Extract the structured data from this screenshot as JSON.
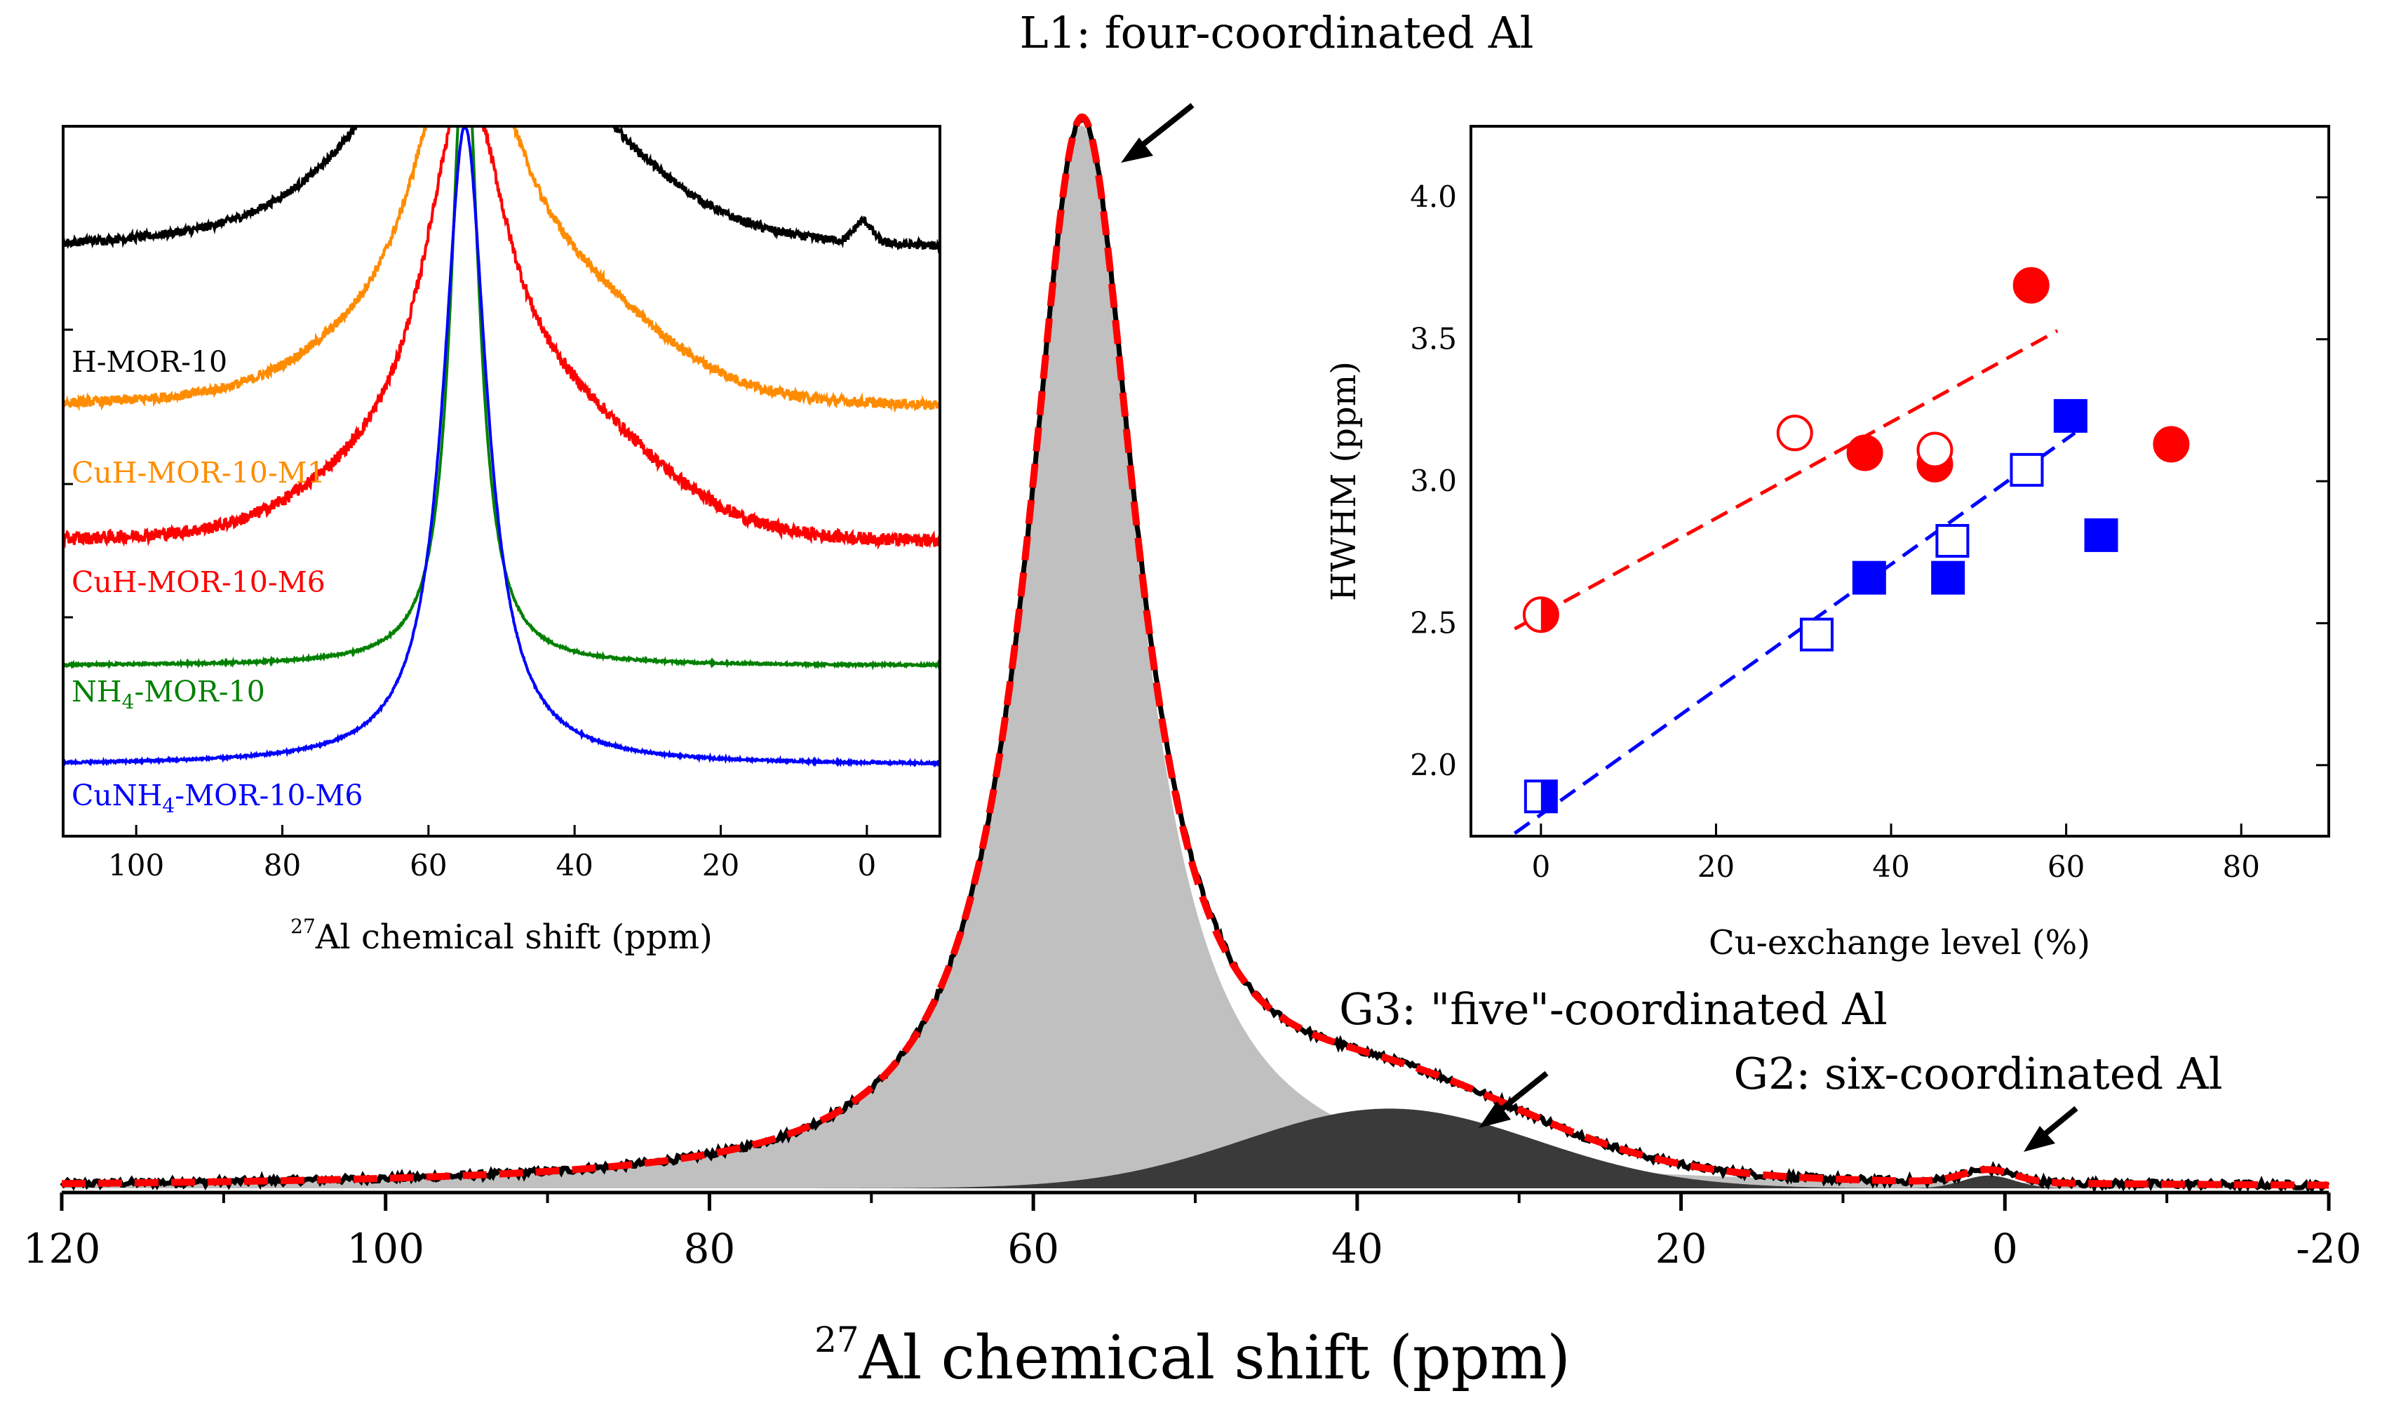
{
  "chart_data": [
    {
      "id": "main",
      "type": "line",
      "title": "",
      "xlabel_sup": "27",
      "xlabel": "Al chemical shift (ppm)",
      "ylabel": "",
      "xlim": [
        120,
        -20
      ],
      "xticks": [
        "120",
        "100",
        "80",
        "60",
        "40",
        "20",
        "0",
        "-20"
      ],
      "tick_values": [
        120,
        100,
        80,
        60,
        40,
        20,
        0,
        -20
      ],
      "components": [
        {
          "name": "L1",
          "label": "L1: four-coordinated Al",
          "shape": "lorentzian",
          "center": 57,
          "hwhm": 4.2,
          "height": 1.0,
          "color": "#c0c0c0"
        },
        {
          "name": "G3",
          "label": "G3: \"five\"-coordinated Al",
          "shape": "gaussian",
          "center": 38,
          "sigma": 9,
          "height": 0.075,
          "color": "#3a3a3a"
        },
        {
          "name": "G2",
          "label": "G2: six-coordinated Al",
          "shape": "gaussian",
          "center": 1,
          "sigma": 1.6,
          "height": 0.012,
          "color": "#3a3a3a"
        }
      ],
      "series": [
        {
          "name": "experimental",
          "color": "#000000",
          "style": "solid"
        },
        {
          "name": "fit",
          "color": "#ff0000",
          "style": "dashed"
        }
      ],
      "annotations": [
        {
          "text": "L1: four-coordinated Al",
          "points_to_ppm": 56
        },
        {
          "text": "G3: \"five\"-coordinated Al",
          "points_to_ppm": 32
        },
        {
          "text": "G2: six-coordinated Al",
          "points_to_ppm": -1
        }
      ]
    },
    {
      "id": "inset-spectra",
      "type": "line",
      "xlabel_sup": "27",
      "xlabel": "Al chemical shift (ppm)",
      "xlim": [
        110,
        -10
      ],
      "xticks": [
        "100",
        "80",
        "60",
        "40",
        "20",
        "0"
      ],
      "tick_values": [
        100,
        80,
        60,
        40,
        20,
        0
      ],
      "series": [
        {
          "name": "H-MOR-10",
          "color": "#000000",
          "baseline": 0.82
        },
        {
          "name": "CuH-MOR-10-M1",
          "color": "#ff8c00",
          "baseline": 0.6
        },
        {
          "name": "CuH-MOR-10-M6",
          "color": "#ff0000",
          "baseline": 0.41
        },
        {
          "name": "NH4-MOR-10",
          "name_main": "NH",
          "name_sub": "4",
          "name_rest": "-MOR-10",
          "color": "#008000",
          "baseline": 0.24
        },
        {
          "name": "CuNH4-MOR-10-M6",
          "name_main": "CuNH",
          "name_sub": "4",
          "name_rest": "-MOR-10-M6",
          "color": "#0000ff",
          "baseline": 0.1
        }
      ]
    },
    {
      "id": "inset-hwhm",
      "type": "scatter",
      "xlabel": "Cu-exchange level (%)",
      "ylabel": "HWHM (ppm)",
      "xlim": [
        -8,
        90
      ],
      "ylim": [
        1.75,
        4.25
      ],
      "xticks": [
        "0",
        "20",
        "40",
        "60",
        "80"
      ],
      "xtick_values": [
        0,
        20,
        40,
        60,
        80
      ],
      "yticks": [
        "2.0",
        "2.5",
        "3.0",
        "3.5",
        "4.0"
      ],
      "ytick_values": [
        2.0,
        2.5,
        3.0,
        3.5,
        4.0
      ],
      "series": [
        {
          "name": "circles-filled",
          "marker": "circle",
          "fill": true,
          "color": "#ff0000",
          "points": [
            [
              37,
              3.1
            ],
            [
              45,
              3.06
            ],
            [
              56,
              3.69
            ],
            [
              72,
              3.13
            ]
          ]
        },
        {
          "name": "circles-open",
          "marker": "circle",
          "fill": false,
          "color": "#ff0000",
          "points": [
            [
              29,
              3.17
            ],
            [
              45,
              3.11
            ]
          ]
        },
        {
          "name": "circle-half",
          "marker": "circle-half",
          "color": "#ff0000",
          "points": [
            [
              0,
              2.53
            ]
          ]
        },
        {
          "name": "squares-filled",
          "marker": "square",
          "fill": true,
          "color": "#0000ff",
          "points": [
            [
              37.5,
              2.66
            ],
            [
              46.5,
              2.66
            ],
            [
              60.5,
              3.23
            ],
            [
              64,
              2.81
            ]
          ]
        },
        {
          "name": "squares-open",
          "marker": "square",
          "fill": false,
          "color": "#0000ff",
          "points": [
            [
              31.5,
              2.46
            ],
            [
              47,
              2.79
            ],
            [
              55.5,
              3.04
            ]
          ]
        },
        {
          "name": "square-half",
          "marker": "square-half",
          "color": "#0000ff",
          "points": [
            [
              0,
              1.89
            ]
          ]
        }
      ],
      "trendlines": [
        {
          "color": "#ff0000",
          "from": [
            -3,
            2.48
          ],
          "to": [
            59,
            3.53
          ]
        },
        {
          "color": "#0000ff",
          "from": [
            -3,
            1.76
          ],
          "to": [
            61,
            3.17
          ]
        }
      ]
    }
  ]
}
